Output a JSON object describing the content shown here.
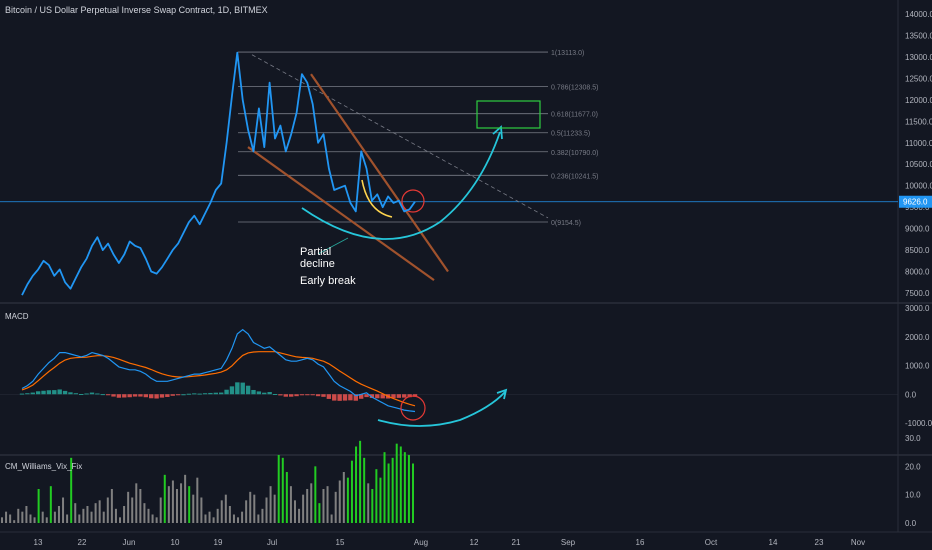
{
  "header": {
    "title": "Bitcoin / US Dollar Perpetual Inverse Swap Contract, 1D, BITMEX"
  },
  "panels": {
    "macd_label": "MACD",
    "vix_label": "CM_Williams_Vix_Fix"
  },
  "annotations": {
    "partial": "Partial",
    "decline": "decline",
    "early_break": "Early break"
  },
  "current_price": {
    "value": 9626.0,
    "label": "9626.0"
  },
  "colors": {
    "background": "#131722",
    "price_line": "#2196f3",
    "fib_line": "#787b86",
    "trendline": "#a0522d",
    "cyan_arc": "#26c6da",
    "yellow_arc": "#ffd54f",
    "macd_line": "#2196f3",
    "signal_line": "#ff6d00",
    "hist_up": "#26a69a",
    "hist_down": "#ef5350",
    "vix_green": "#22cc22",
    "vix_gray": "#808080",
    "current_price_tag": "#2196f3",
    "target_box": "#2ecc40",
    "circle": "#e53935"
  },
  "chart_data": [
    {
      "type": "line",
      "name": "price",
      "ylim": [
        7200,
        14300
      ],
      "y_ticks": [
        "14000.0",
        "13500.0",
        "13000.0",
        "12500.0",
        "12000.0",
        "11500.0",
        "11000.0",
        "10500.0",
        "10000.0",
        "9500.0",
        "9000.0",
        "8500.0",
        "8000.0",
        "7500.0"
      ],
      "x_ticks": [
        "13",
        "22",
        "Jun",
        "10",
        "19",
        "Jul",
        "15",
        "Aug",
        "12",
        "21",
        "Sep",
        "16",
        "Oct",
        "14",
        "23",
        "Nov"
      ],
      "values": [
        7450,
        7700,
        7900,
        8050,
        8250,
        8150,
        7900,
        8050,
        7750,
        7600,
        7850,
        8100,
        8300,
        8600,
        8800,
        8500,
        8650,
        8400,
        8200,
        8400,
        8700,
        8600,
        8550,
        8300,
        8000,
        7950,
        8100,
        8300,
        8500,
        8650,
        8900,
        9150,
        9300,
        9100,
        9350,
        9600,
        9900,
        10050,
        11000,
        12100,
        13100,
        12000,
        11300,
        10800,
        11800,
        10900,
        12400,
        11100,
        11400,
        10800,
        11200,
        11700,
        12600,
        12400,
        11900,
        11000,
        11200,
        10400,
        9900,
        9950,
        10000,
        9600,
        9400,
        10800,
        10400,
        9650,
        9800,
        9500,
        9750,
        9600,
        9650,
        9400,
        9450,
        9626
      ],
      "fib_levels": [
        {
          "label": "1(13113.0)",
          "value": 13113.0
        },
        {
          "label": "0.786(12308.5)",
          "value": 12308.5
        },
        {
          "label": "0.618(11677.0)",
          "value": 11677.0
        },
        {
          "label": "0.5(11233.5)",
          "value": 11233.5
        },
        {
          "label": "0.382(10790.0)",
          "value": 10790.0
        },
        {
          "label": "0.236(10241.5)",
          "value": 10241.5
        },
        {
          "label": "0(9154.5)",
          "value": 9154.5
        }
      ]
    },
    {
      "type": "line",
      "name": "MACD",
      "ylim": [
        -1150,
        3050
      ],
      "y_ticks": [
        "3000.0",
        "2000.0",
        "1000.0",
        "0.0",
        "-1000.0"
      ],
      "macd": [
        200,
        300,
        450,
        700,
        900,
        1100,
        1250,
        1450,
        1450,
        1400,
        1350,
        1300,
        1350,
        1450,
        1400,
        1350,
        1250,
        1100,
        950,
        900,
        850,
        850,
        800,
        700,
        550,
        450,
        450,
        450,
        500,
        550,
        600,
        650,
        700,
        700,
        750,
        800,
        850,
        900,
        1200,
        1600,
        2100,
        2250,
        2100,
        1800,
        1700,
        1600,
        1650,
        1500,
        1350,
        1200,
        1150,
        1150,
        1200,
        1250,
        1200,
        1050,
        950,
        700,
        450,
        300,
        200,
        100,
        -50,
        0,
        50,
        -100,
        -200,
        -300,
        -400,
        -450,
        -500,
        -550,
        -580,
        -600
      ],
      "signal": [
        150,
        220,
        320,
        470,
        630,
        790,
        930,
        1080,
        1190,
        1250,
        1270,
        1280,
        1290,
        1320,
        1340,
        1340,
        1320,
        1280,
        1220,
        1150,
        1080,
        1030,
        980,
        930,
        860,
        780,
        710,
        660,
        620,
        600,
        600,
        610,
        630,
        650,
        670,
        700,
        730,
        770,
        850,
        990,
        1180,
        1350,
        1440,
        1470,
        1480,
        1480,
        1480,
        1480,
        1440,
        1390,
        1340,
        1300,
        1280,
        1270,
        1250,
        1200,
        1150,
        1060,
        940,
        810,
        690,
        570,
        450,
        350,
        270,
        190,
        110,
        20,
        -70,
        -150,
        -220,
        -290,
        -350,
        -400
      ]
    },
    {
      "type": "bar",
      "name": "CM_Williams_Vix_Fix",
      "ylim": [
        -2,
        32
      ],
      "y_ticks": [
        "30.0",
        "20.0",
        "10.0",
        "0.0"
      ],
      "values": [
        2,
        4,
        3,
        1,
        5,
        4,
        6,
        3,
        2,
        12,
        4,
        2,
        13,
        4,
        6,
        9,
        3,
        23,
        7,
        3,
        5,
        6,
        4,
        7,
        8,
        4,
        9,
        12,
        5,
        2,
        6,
        11,
        9,
        14,
        12,
        7,
        5,
        3,
        2,
        9,
        17,
        13,
        15,
        12,
        14,
        17,
        13,
        10,
        16,
        9,
        3,
        4,
        2,
        5,
        8,
        10,
        6,
        3,
        2,
        4,
        8,
        11,
        10,
        3,
        5,
        9,
        13,
        10,
        24,
        23,
        18,
        13,
        8,
        5,
        10,
        12,
        14,
        20,
        7,
        12,
        13,
        3,
        11,
        15,
        18,
        16,
        22,
        27,
        29,
        23,
        14,
        12,
        19,
        16,
        25,
        21,
        23,
        28,
        27,
        25,
        24,
        21
      ],
      "highlight": [
        9,
        12,
        17,
        40,
        46,
        68,
        69,
        70,
        77,
        78,
        85,
        86,
        87,
        88,
        89,
        91,
        92,
        93,
        94,
        95,
        96,
        97,
        98,
        99,
        100,
        101
      ]
    }
  ]
}
